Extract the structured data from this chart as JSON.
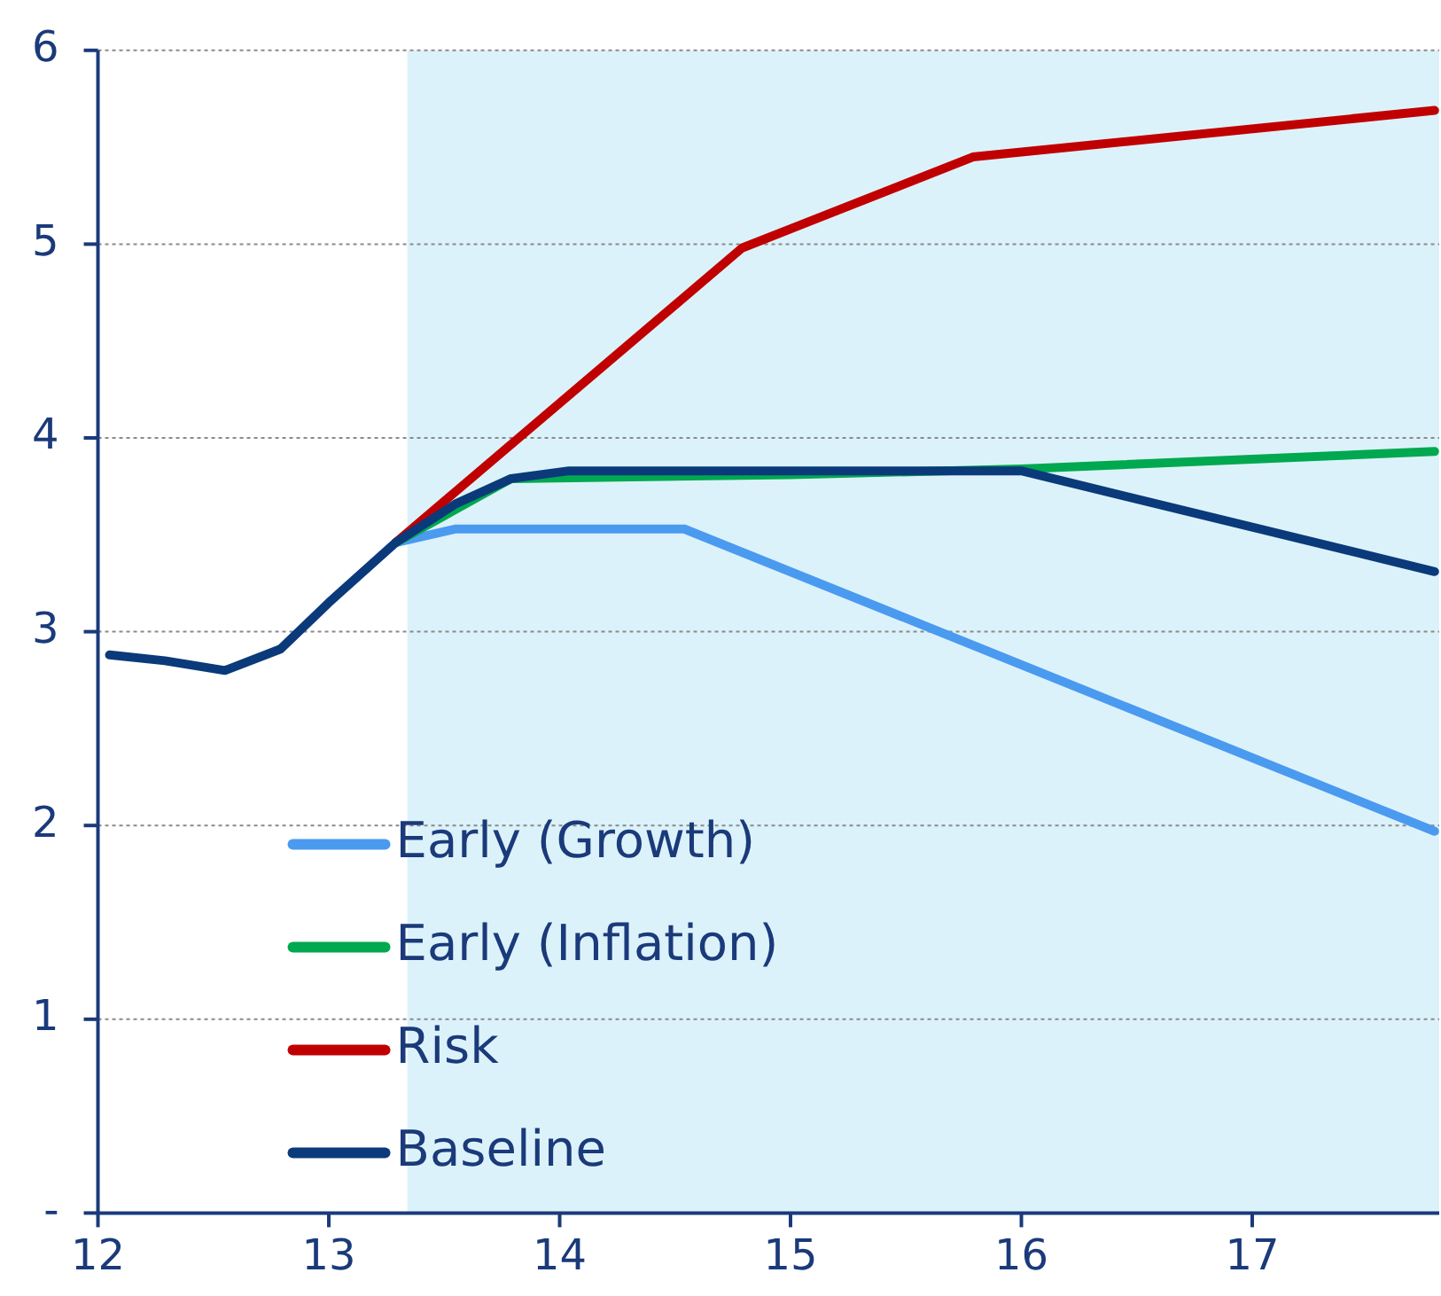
{
  "chart_data": {
    "type": "line",
    "xlim": [
      12,
      17.81
    ],
    "xticks": [
      12,
      13,
      14,
      15,
      16,
      17
    ],
    "ylim": [
      0,
      6
    ],
    "yticks": [
      {
        "value": 0,
        "label": "-"
      },
      1,
      2,
      3,
      4,
      5,
      6
    ],
    "grid": "y",
    "legend": "bottom left",
    "line_style": "solid",
    "marker": "none",
    "bands": [
      {
        "axis": "x",
        "from": 13.34,
        "to": 17.81,
        "color": "#dcf2fa"
      }
    ],
    "series": [
      {
        "name": "Early (Growth)",
        "color": "#4a9af0",
        "x": [
          13.29,
          13.55,
          14.54,
          17.79
        ],
        "values": [
          3.46,
          3.53,
          3.53,
          1.97
        ]
      },
      {
        "name": "Early (Inflation)",
        "color": "#00a84f",
        "x": [
          13.29,
          13.79,
          15.0,
          16.0,
          17.79
        ],
        "values": [
          3.46,
          3.79,
          3.81,
          3.84,
          3.93
        ]
      },
      {
        "name": "Risk",
        "color": "#c00000",
        "x": [
          13.29,
          14.79,
          15.79,
          17.79
        ],
        "values": [
          3.46,
          4.98,
          5.45,
          5.69
        ]
      },
      {
        "name": "Baseline",
        "color": "#0a3a7a",
        "x": [
          12.05,
          12.29,
          12.55,
          12.79,
          13.0,
          13.29,
          13.55,
          13.79,
          14.04,
          16.0,
          17.79
        ],
        "values": [
          2.88,
          2.85,
          2.8,
          2.91,
          3.15,
          3.46,
          3.66,
          3.79,
          3.83,
          3.83,
          3.31
        ]
      }
    ]
  }
}
